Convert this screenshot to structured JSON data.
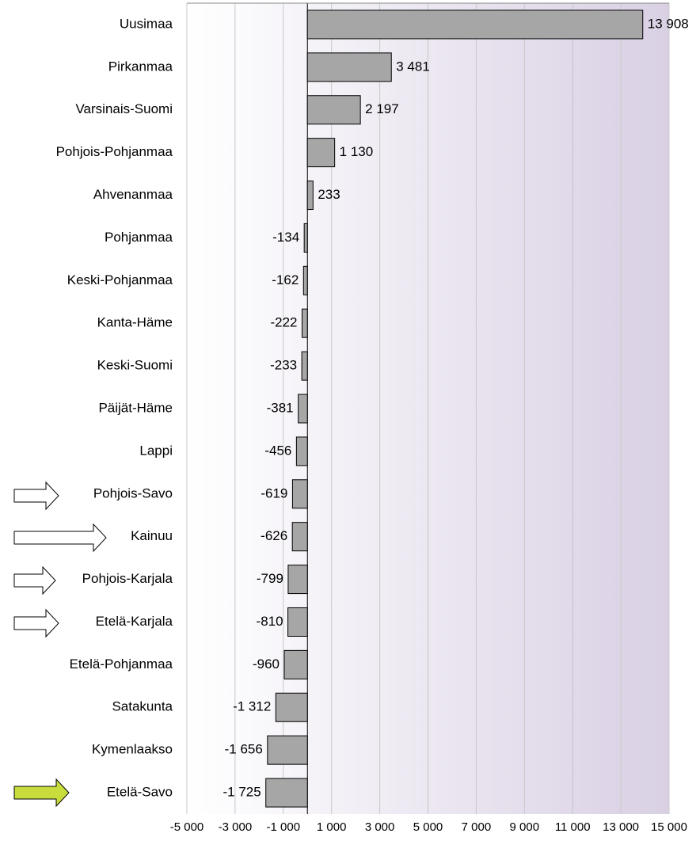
{
  "chart_data": {
    "type": "bar",
    "orientation": "horizontal",
    "categories": [
      "Uusimaa",
      "Pirkanmaa",
      "Varsinais-Suomi",
      "Pohjois-Pohjanmaa",
      "Ahvenanmaa",
      "Pohjanmaa",
      "Keski-Pohjanmaa",
      "Kanta-Häme",
      "Keski-Suomi",
      "Päijät-Häme",
      "Lappi",
      "Pohjois-Savo",
      "Kainuu",
      "Pohjois-Karjala",
      "Etelä-Karjala",
      "Etelä-Pohjanmaa",
      "Satakunta",
      "Kymenlaakso",
      "Etelä-Savo"
    ],
    "values": [
      13908,
      3481,
      2197,
      1130,
      233,
      -134,
      -162,
      -222,
      -233,
      -381,
      -456,
      -619,
      -626,
      -799,
      -810,
      -960,
      -1312,
      -1656,
      -1725
    ],
    "value_labels": [
      "13 908",
      "3 481",
      "2 197",
      "1 130",
      "233",
      "-134",
      "-162",
      "-222",
      "-233",
      "-381",
      "-456",
      "-619",
      "-626",
      "-799",
      "-810",
      "-960",
      "-1 312",
      "-1 656",
      "-1 725"
    ],
    "color": "#a6a6a6",
    "xlim": [
      -5000,
      15000
    ],
    "xticks": [
      {
        "value": -5000,
        "label": "-5 000"
      },
      {
        "value": -3000,
        "label": "-3 000"
      },
      {
        "value": -1000,
        "label": "-1 000"
      },
      {
        "value": 1000,
        "label": "1 000"
      },
      {
        "value": 3000,
        "label": "3 000"
      },
      {
        "value": 5000,
        "label": "5 000"
      },
      {
        "value": 7000,
        "label": "7 000"
      },
      {
        "value": 9000,
        "label": "9 000"
      },
      {
        "value": 11000,
        "label": "11 000"
      },
      {
        "value": 13000,
        "label": "13 000"
      },
      {
        "value": 15000,
        "label": "15 000"
      }
    ],
    "grid": true
  }
}
